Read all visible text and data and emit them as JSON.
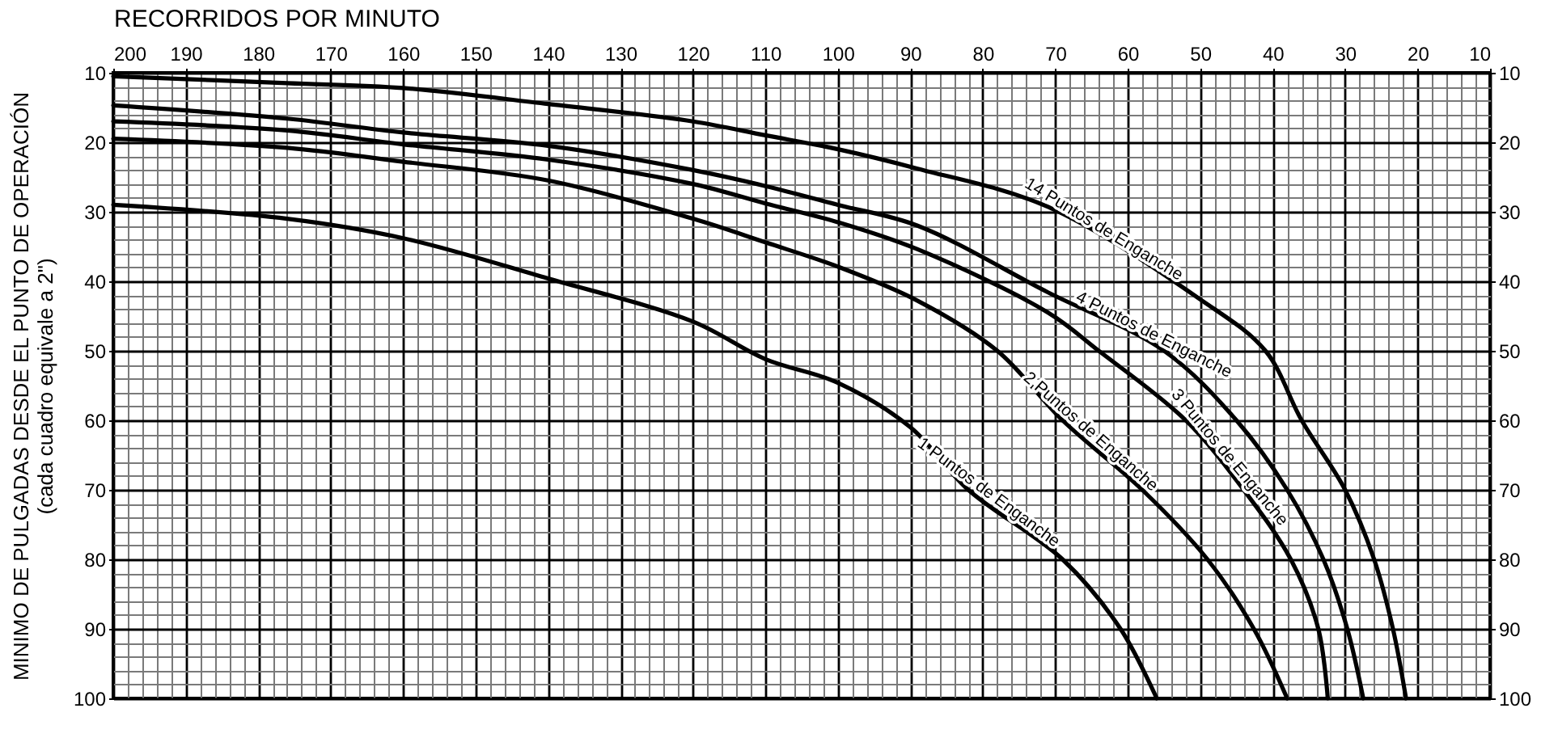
{
  "chart_data": {
    "type": "line",
    "xlabel": "RECORRIDOS POR MINUTO",
    "ylabel": "MINIMO DE PULGADAS DESDE EL PUNTO DE OPERACIÓN\n(cada cuadro equivale a 2\")",
    "xlim": [
      200,
      10
    ],
    "xticks": [
      200,
      190,
      180,
      170,
      160,
      150,
      140,
      130,
      120,
      110,
      100,
      90,
      80,
      70,
      60,
      50,
      40,
      30,
      20,
      10
    ],
    "ylim": [
      100,
      10
    ],
    "yticks": [
      10,
      20,
      30,
      40,
      50,
      60,
      70,
      80,
      90,
      100
    ],
    "y2lim": [
      100,
      10
    ],
    "y2ticks": [
      10,
      20,
      30,
      40,
      50,
      60,
      70,
      80,
      90,
      100
    ],
    "grid": true,
    "line_style": "solid",
    "marker": "none",
    "series": [
      {
        "name": "14 Puntos de Enganche",
        "color": "#000000",
        "x": [
          200,
          176,
          160,
          140,
          120,
          110,
          100,
          89,
          71,
          50,
          41,
          36,
          30,
          26,
          23.4,
          21.6
        ],
        "values": [
          10.5,
          11.5,
          12.2,
          14.5,
          17,
          19,
          21,
          23.8,
          29.3,
          42.6,
          50,
          60,
          70,
          80,
          90,
          100
        ]
      },
      {
        "name": "4 Puntos de Enganche",
        "color": "#000000",
        "x": [
          200,
          176,
          160,
          140,
          120,
          110,
          100,
          89,
          71,
          55,
          45,
          38,
          33,
          29.7,
          27.5
        ],
        "values": [
          14.7,
          16.6,
          18.6,
          20.5,
          24,
          26.3,
          29,
          32,
          41.6,
          50,
          60,
          70,
          80,
          90,
          100
        ]
      },
      {
        "name": "3 Puntos de Enganche",
        "color": "#000000",
        "x": [
          200,
          176,
          160,
          140,
          120,
          110,
          100,
          89,
          71,
          64,
          52,
          44,
          37.5,
          33.7,
          32.4
        ],
        "values": [
          17,
          18.3,
          20.3,
          22.5,
          26,
          28.8,
          31.5,
          35.4,
          44.5,
          50,
          60,
          70,
          80,
          90,
          100
        ]
      },
      {
        "name": "2 Puntos de Enganche",
        "color": "#000000",
        "x": [
          200,
          176,
          160,
          140,
          120,
          110,
          100,
          89,
          78,
          69,
          58,
          49,
          42.6,
          38
        ],
        "values": [
          19.5,
          20.8,
          22.8,
          25.5,
          31,
          34.4,
          37.9,
          42.8,
          50,
          60,
          70,
          80,
          90,
          100
        ]
      },
      {
        "name": "1 Puntos de Enganche",
        "color": "#000000",
        "x": [
          200,
          176,
          160,
          140,
          120,
          110,
          100,
          90,
          82,
          69,
          61,
          56
        ],
        "values": [
          29,
          31,
          33.8,
          39.6,
          45.8,
          51.2,
          54.6,
          61,
          70,
          80,
          90,
          100
        ]
      }
    ]
  }
}
